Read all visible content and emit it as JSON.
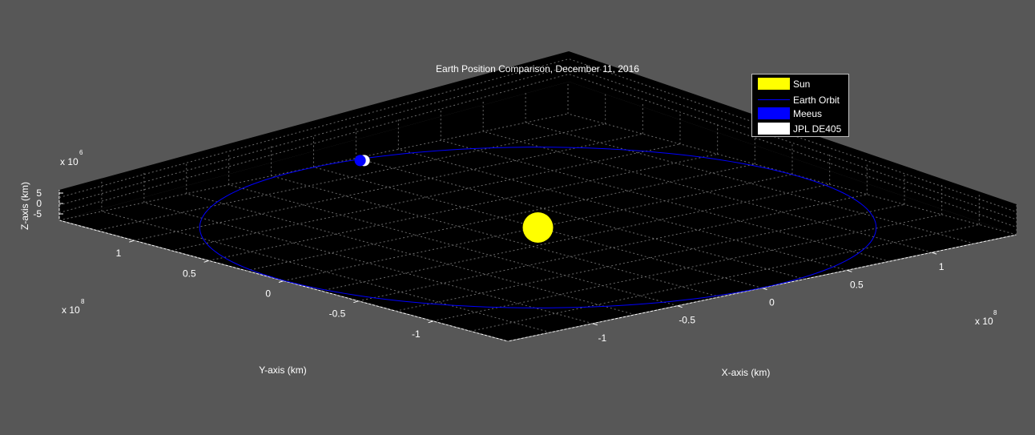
{
  "chart_data": {
    "type": "scatter",
    "title": "Earth Position Comparison, December 11, 2016",
    "xlabel": "X-axis (km)",
    "ylabel": "Y-axis (km)",
    "zlabel": "Z-axis (km)",
    "x_exponent": "x 10",
    "x_exponent_power": "8",
    "y_exponent": "x 10",
    "y_exponent_power": "8",
    "z_exponent": "x 10",
    "z_exponent_power": "6",
    "x_ticks": [
      "-1",
      "-0.5",
      "0",
      "0.5",
      "1"
    ],
    "y_ticks": [
      "-1",
      "-0.5",
      "0",
      "0.5",
      "1"
    ],
    "z_ticks": [
      "5",
      "0",
      "-5"
    ],
    "grid": true,
    "legend_position": "top-right",
    "colors": {
      "background": "#575757",
      "axes": "#000000",
      "sun": "#ffff00",
      "orbit": "#0000ff",
      "meeus": "#0000ff",
      "jpl": "#ffffff"
    },
    "series": [
      {
        "name": "Sun",
        "x": [
          0
        ],
        "y": [
          0
        ],
        "z": [
          0
        ]
      },
      {
        "name": "Earth Orbit",
        "shape": "ellipse",
        "semi_major_axis": 149600000.0
      },
      {
        "name": "Meeus",
        "x": [
          24000000.0
        ],
        "y": [
          145000000.0
        ],
        "z": [
          0
        ]
      },
      {
        "name": "JPL DE405",
        "x": [
          24000000.0
        ],
        "y": [
          145000000.0
        ],
        "z": [
          0
        ]
      }
    ],
    "legend": [
      "Sun",
      "Earth Orbit",
      "Meeus",
      "JPL DE405"
    ]
  }
}
